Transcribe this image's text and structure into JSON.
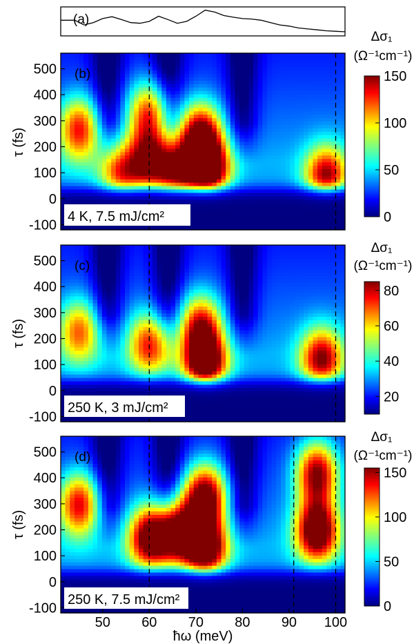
{
  "figure": {
    "xlabel": "ħω (meV)",
    "x_ticks": [
      50,
      60,
      70,
      80,
      90,
      100
    ]
  },
  "chart_data": [
    {
      "type": "line",
      "panel": "(a)",
      "title": "",
      "x": [
        41,
        44,
        46,
        48,
        50,
        52,
        54,
        56,
        58,
        60,
        62,
        64,
        66,
        68,
        70,
        72,
        74,
        76,
        78,
        80,
        82,
        84,
        86,
        88,
        90,
        92,
        94,
        96,
        98,
        100,
        102
      ],
      "y": [
        0.55,
        0.55,
        0.35,
        0.45,
        0.62,
        0.7,
        0.58,
        0.45,
        0.42,
        0.5,
        0.72,
        0.58,
        0.42,
        0.5,
        0.72,
        0.98,
        0.9,
        0.75,
        0.68,
        0.62,
        0.6,
        0.55,
        0.45,
        0.35,
        0.3,
        0.22,
        0.18,
        0.14,
        0.1,
        0.08,
        0.06
      ],
      "xlim": [
        41,
        102
      ],
      "grid": false
    },
    {
      "type": "heatmap",
      "panel": "(b)",
      "annotation": "4 K, 7.5 mJ/cm²",
      "ylabel": "τ (fs)",
      "y_ticks": [
        -100,
        0,
        100,
        200,
        300,
        400,
        500
      ],
      "xlim": [
        41,
        102
      ],
      "ylim": [
        -120,
        560
      ],
      "zmax": 150,
      "colorbar": {
        "title": "Δσ₁",
        "unit": "(Ω⁻¹cm⁻¹)",
        "ticks": [
          0,
          50,
          100,
          150
        ]
      },
      "dashed_lines_x": [
        60,
        100
      ],
      "peaks": [
        {
          "x": 72.5,
          "y": 110,
          "value": 150
        },
        {
          "x": 71,
          "y": 250,
          "value": 115
        },
        {
          "x": 60,
          "y": 150,
          "value": 100
        },
        {
          "x": 60,
          "y": 330,
          "value": 90
        },
        {
          "x": 45,
          "y": 270,
          "value": 95
        },
        {
          "x": 98,
          "y": 80,
          "value": 110
        },
        {
          "x": 54,
          "y": 90,
          "value": 80
        },
        {
          "x": 66,
          "y": 100,
          "value": 95
        }
      ],
      "valleys_x": [
        51,
        64,
        80
      ]
    },
    {
      "type": "heatmap",
      "panel": "(c)",
      "annotation": "250 K, 3 mJ/cm²",
      "ylabel": "τ (fs)",
      "y_ticks": [
        -100,
        0,
        100,
        200,
        300,
        400,
        500
      ],
      "xlim": [
        41,
        102
      ],
      "ylim": [
        -120,
        560
      ],
      "zmax": 85,
      "colorbar": {
        "title": "Δσ₁",
        "unit": "(Ω⁻¹cm⁻¹)",
        "ticks": [
          20,
          40,
          60,
          80
        ]
      },
      "dashed_lines_x": [
        60,
        100
      ],
      "peaks": [
        {
          "x": 72,
          "y": 100,
          "value": 80
        },
        {
          "x": 71,
          "y": 250,
          "value": 55
        },
        {
          "x": 60,
          "y": 180,
          "value": 50
        },
        {
          "x": 97,
          "y": 120,
          "value": 62
        },
        {
          "x": 45,
          "y": 230,
          "value": 45
        }
      ],
      "valleys_x": [
        51,
        64,
        80
      ]
    },
    {
      "type": "heatmap",
      "panel": "(d)",
      "annotation": "250 K, 7.5 mJ/cm²",
      "ylabel": "τ (fs)",
      "y_ticks": [
        -100,
        0,
        100,
        200,
        300,
        400,
        500
      ],
      "xlim": [
        41,
        102
      ],
      "ylim": [
        -120,
        560
      ],
      "zmax": 155,
      "colorbar": {
        "title": "Δσ₁",
        "unit": "(Ω⁻¹cm⁻¹)",
        "ticks": [
          0,
          50,
          100,
          150
        ]
      },
      "dashed_lines_x": [
        60,
        91,
        100
      ],
      "peaks": [
        {
          "x": 72,
          "y": 130,
          "value": 150
        },
        {
          "x": 72,
          "y": 330,
          "value": 135
        },
        {
          "x": 60,
          "y": 170,
          "value": 125
        },
        {
          "x": 96,
          "y": 200,
          "value": 145
        },
        {
          "x": 96,
          "y": 420,
          "value": 125
        },
        {
          "x": 45,
          "y": 300,
          "value": 105
        },
        {
          "x": 66,
          "y": 200,
          "value": 120
        }
      ],
      "valleys_x": [
        51,
        64,
        80
      ]
    }
  ]
}
